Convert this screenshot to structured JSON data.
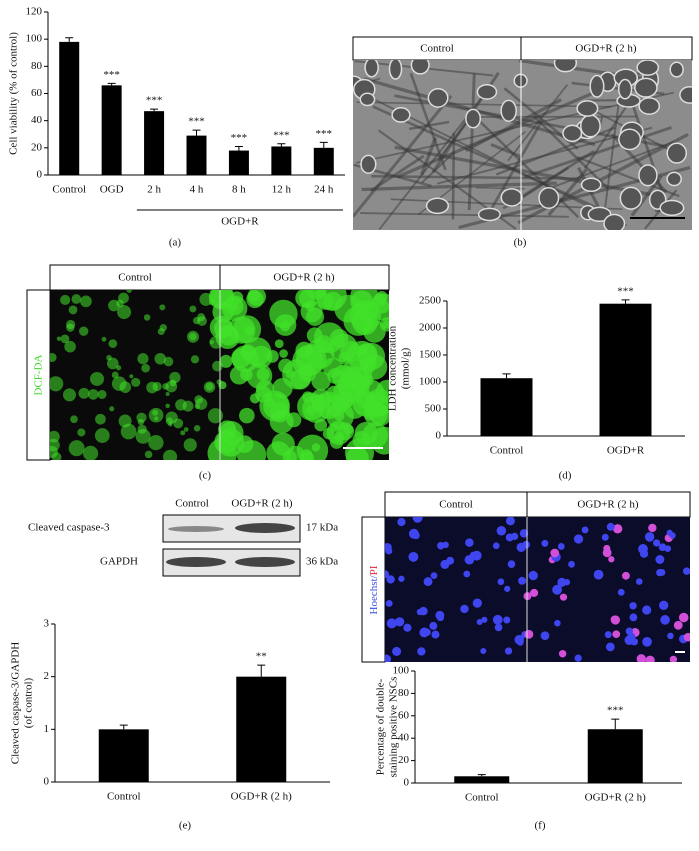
{
  "chart_data": [
    {
      "type": "bar",
      "panel_label": "(a)",
      "ylabel": [
        "Cell viability (% of control)"
      ],
      "categories": [
        "Control",
        "OGD",
        "2 h",
        "4 h",
        "8 h",
        "12 h",
        "24 h"
      ],
      "values": [
        98,
        66,
        47,
        29,
        18,
        21,
        20
      ],
      "errors": [
        3,
        1.5,
        1.5,
        4,
        3,
        2,
        4
      ],
      "annotations": [
        null,
        "***",
        "***",
        "***",
        "***",
        "***",
        "***"
      ],
      "group_label": "OGD+R",
      "color": "#000000",
      "ylim": [
        0,
        120
      ],
      "yticks": [
        0,
        20,
        40,
        60,
        80,
        100,
        120
      ]
    },
    {
      "type": "bar",
      "panel_label": "(d)",
      "ylabel": [
        "LDH concentration",
        "(mmol/g)"
      ],
      "categories": [
        "Control",
        "OGD+R"
      ],
      "values": [
        1070,
        2450
      ],
      "errors": [
        80,
        70
      ],
      "annotations": [
        null,
        "***"
      ],
      "color": "#000000",
      "ylim": [
        0,
        2500
      ],
      "yticks": [
        0,
        500,
        1000,
        1500,
        2000,
        2500
      ]
    },
    {
      "type": "bar",
      "panel_label": "(e)",
      "ylabel": [
        "Cleaved caspase-3/GAPDH",
        "(of control)"
      ],
      "categories": [
        "Control",
        "OGD+R (2 h)"
      ],
      "values": [
        1,
        2
      ],
      "errors": [
        0.08,
        0.22
      ],
      "annotations": [
        null,
        "**"
      ],
      "color": "#000000",
      "ylim": [
        0,
        3
      ],
      "yticks": [
        0,
        1,
        2,
        3
      ]
    },
    {
      "type": "bar",
      "panel_label": "(f)",
      "ylabel": [
        "Percentage of double-",
        "staining positive NSCs"
      ],
      "categories": [
        "Control",
        "OGD+R (2 h)"
      ],
      "values": [
        6,
        48
      ],
      "errors": [
        1.5,
        9
      ],
      "annotations": [
        null,
        "***"
      ],
      "color": "#000000",
      "ylim": [
        0,
        100
      ],
      "yticks": [
        0,
        20,
        40,
        60,
        80,
        100
      ]
    }
  ],
  "figure": {
    "panel_b": {
      "label": "(b)",
      "headers": [
        "Control",
        "OGD+R (2 h)"
      ]
    },
    "panel_c": {
      "label": "(c)",
      "headers": [
        "Control",
        "OGD+R (2 h)"
      ],
      "side_label": "DCF-DA"
    },
    "blot": {
      "columns": [
        "Control",
        "OGD+R (2 h)"
      ],
      "rows": [
        {
          "label": "Cleaved caspase-3",
          "size": "17 kDa"
        },
        {
          "label": "GAPDH",
          "size": "36 kDa"
        }
      ]
    },
    "panel_f": {
      "headers": [
        "Control",
        "OGD+R (2 h)"
      ],
      "side_label": [
        "Hoechst/",
        "PI"
      ]
    }
  }
}
